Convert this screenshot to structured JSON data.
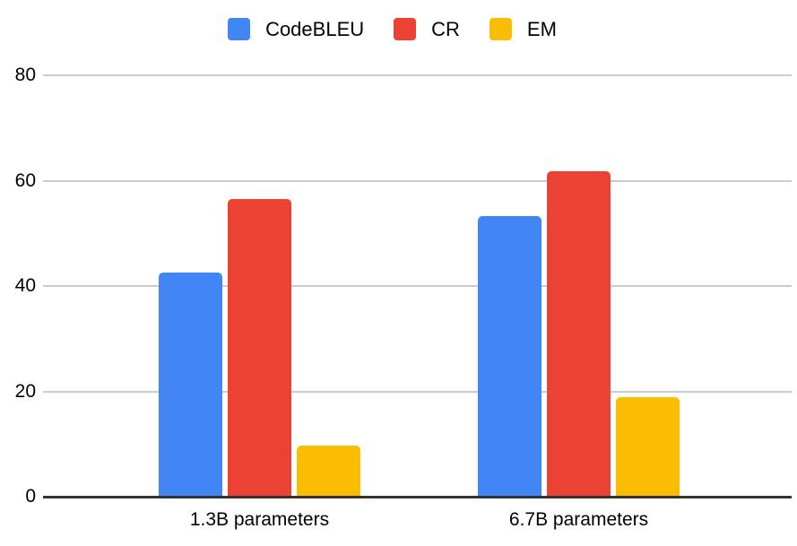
{
  "chart_data": {
    "type": "bar",
    "title": "",
    "categories": [
      "1.3B parameters",
      "6.7B parameters"
    ],
    "series": [
      {
        "name": "CodeBLEU",
        "color": "#4285f4",
        "values": [
          42.6,
          53.2
        ]
      },
      {
        "name": "CR",
        "color": "#ea4335",
        "values": [
          56.5,
          61.8
        ]
      },
      {
        "name": "EM",
        "color": "#fbbc04",
        "values": [
          9.7,
          18.9
        ]
      }
    ],
    "yticks": [
      0,
      20,
      40,
      60,
      80
    ],
    "ylim": [
      0,
      80
    ],
    "xlabel": "",
    "ylabel": "",
    "grid": true,
    "legend_position": "top"
  },
  "colors": {
    "background": "#ffffff",
    "gridline": "#cccccc",
    "axis": "#333333",
    "text": "#000000"
  }
}
